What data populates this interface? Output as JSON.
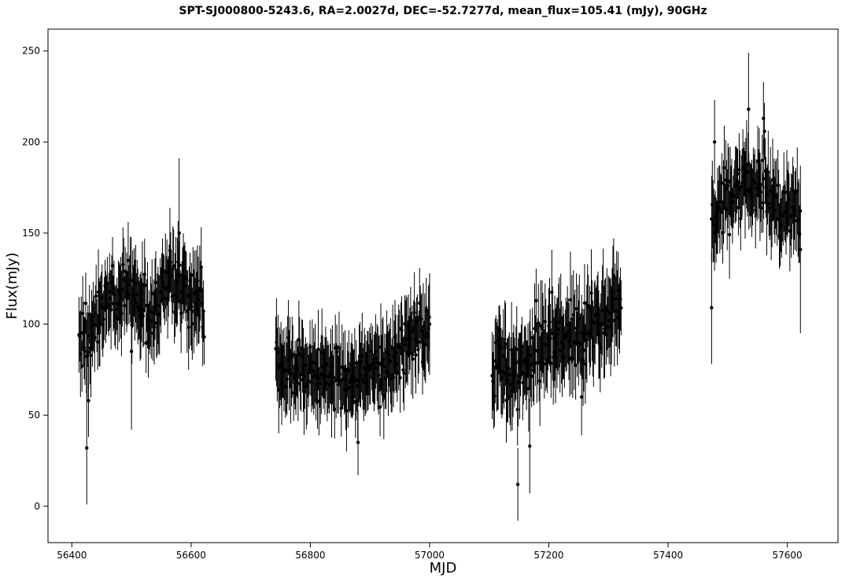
{
  "chart_data": {
    "type": "scatter",
    "title": "SPT-SJ000800-5243.6, RA=2.0027d, DEC=-52.7277d, mean_flux=105.41 (mJy), 90GHz",
    "xlabel": "MJD",
    "ylabel": "Flux(mJy)",
    "xlim": [
      56360,
      57685
    ],
    "ylim": [
      -20,
      262
    ],
    "xticks": [
      56400,
      56600,
      56800,
      57000,
      57200,
      57400,
      57600
    ],
    "yticks": [
      0,
      50,
      100,
      150,
      200,
      250
    ],
    "grid": false,
    "legend": "none",
    "error_bars": true,
    "marker_color": "#000000",
    "segments": [
      {
        "x_start": 56412,
        "x_end": 56622,
        "baseline": [
          [
            56412,
            88
          ],
          [
            56440,
            100
          ],
          [
            56470,
            118
          ],
          [
            56500,
            116
          ],
          [
            56530,
            102
          ],
          [
            56560,
            122
          ],
          [
            56590,
            120
          ],
          [
            56622,
            108
          ]
        ],
        "spread": 14,
        "error": 18
      },
      {
        "x_start": 56742,
        "x_end": 57000,
        "baseline": [
          [
            56742,
            80
          ],
          [
            56780,
            76
          ],
          [
            56820,
            72
          ],
          [
            56860,
            70
          ],
          [
            56900,
            72
          ],
          [
            56940,
            80
          ],
          [
            56970,
            92
          ],
          [
            57000,
            100
          ]
        ],
        "spread": 13,
        "error": 18
      },
      {
        "x_start": 57105,
        "x_end": 57322,
        "baseline": [
          [
            57105,
            80
          ],
          [
            57140,
            74
          ],
          [
            57170,
            82
          ],
          [
            57200,
            90
          ],
          [
            57240,
            94
          ],
          [
            57280,
            98
          ],
          [
            57322,
            110
          ]
        ],
        "spread": 15,
        "error": 20
      },
      {
        "x_start": 57473,
        "x_end": 57622,
        "baseline": [
          [
            57473,
            160
          ],
          [
            57500,
            165
          ],
          [
            57530,
            172
          ],
          [
            57560,
            180
          ],
          [
            57590,
            162
          ],
          [
            57622,
            162
          ]
        ],
        "spread": 15,
        "error": 18
      }
    ],
    "notable_points": [
      {
        "x": 56425,
        "y": 32,
        "err": 31
      },
      {
        "x": 56428,
        "y": 58,
        "err": 20
      },
      {
        "x": 57148,
        "y": 12,
        "err": 20
      },
      {
        "x": 57168,
        "y": 33,
        "err": 26
      },
      {
        "x": 57473,
        "y": 109,
        "err": 31
      },
      {
        "x": 57478,
        "y": 200,
        "err": 23
      },
      {
        "x": 57535,
        "y": 218,
        "err": 31
      },
      {
        "x": 57560,
        "y": 213,
        "err": 20
      },
      {
        "x": 57622,
        "y": 141,
        "err": 46
      },
      {
        "x": 56500,
        "y": 85,
        "err": 43
      },
      {
        "x": 56580,
        "y": 150,
        "err": 41
      },
      {
        "x": 56880,
        "y": 35,
        "err": 18
      },
      {
        "x": 57255,
        "y": 60,
        "err": 21
      },
      {
        "x": 57000,
        "y": 100,
        "err": 28
      }
    ]
  }
}
